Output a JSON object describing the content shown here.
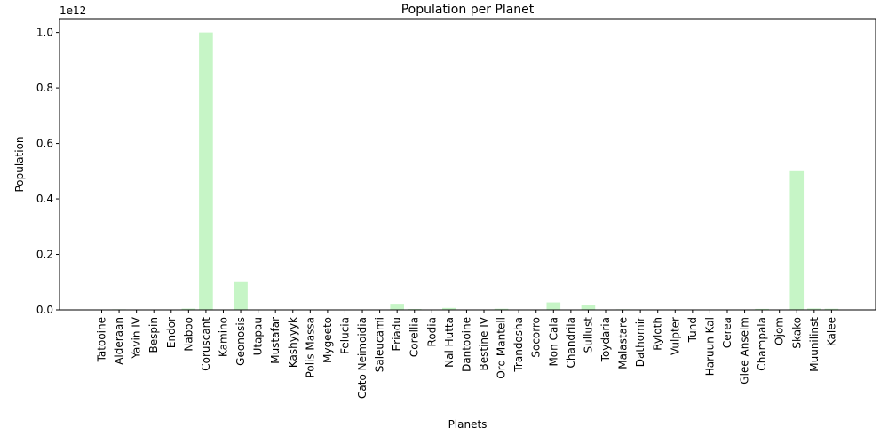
{
  "chart_data": {
    "type": "bar",
    "title": "Population per Planet",
    "xlabel": "Planets",
    "ylabel": "Population",
    "y_offset_label": "1e12",
    "ylim": [
      0,
      1050000000000
    ],
    "yticks": [
      0,
      200000000000,
      400000000000,
      600000000000,
      800000000000,
      1000000000000
    ],
    "ytick_labels": [
      "0.0",
      "0.2",
      "0.4",
      "0.6",
      "0.8",
      "1.0"
    ],
    "grid": false,
    "legend": "none",
    "bar_color": "#c6f5c6",
    "categories": [
      "Tatooine",
      "Alderaan",
      "Yavin IV",
      "Bespin",
      "Endor",
      "Naboo",
      "Coruscant",
      "Kamino",
      "Geonosis",
      "Utapau",
      "Mustafar",
      "Kashyyyk",
      "Polis Massa",
      "Mygeeto",
      "Felucia",
      "Cato Neimoidia",
      "Saleucami",
      "Eriadu",
      "Corellia",
      "Rodia",
      "Nal Hutta",
      "Dantooine",
      "Bestine IV",
      "Ord Mantell",
      "Trandosha",
      "Socorro",
      "Mon Cala",
      "Chandrila",
      "Sullust",
      "Toydaria",
      "Malastare",
      "Dathomir",
      "Ryloth",
      "Vulpter",
      "Tund",
      "Haruun Kal",
      "Cerea",
      "Glee Anselm",
      "Champala",
      "Ojom",
      "Skako",
      "Muunilinst",
      "Kalee"
    ],
    "values": [
      200000,
      2000000000,
      1000,
      6000000,
      30000000,
      4500000000,
      1000000000000,
      1000000000,
      100000000000,
      95000000,
      20000,
      45000000,
      1000000,
      19000000,
      8500000,
      10000000,
      1400000000,
      22000000000,
      3000000000,
      1300000000,
      7000000000,
      1000,
      62000000,
      4000000000,
      42000000,
      300000000,
      27000000000,
      1200000000,
      18500000000,
      11000000,
      2000000000,
      5200,
      1500000000,
      421000000,
      0,
      705300,
      450000000,
      500000000,
      3500000000,
      500000000,
      500000000000,
      5000000000,
      4000000000
    ]
  }
}
